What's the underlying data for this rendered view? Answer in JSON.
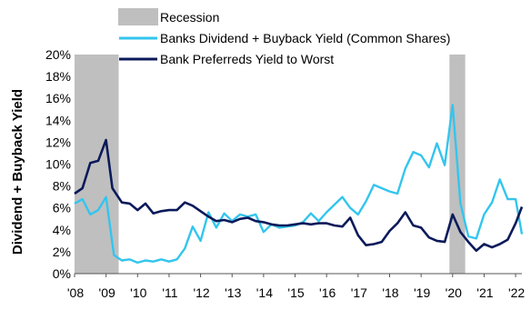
{
  "chart_data": {
    "type": "line",
    "ylabel": "Dividend + Buyback Yield",
    "ylim": [
      0,
      20
    ],
    "yticks": [
      "0%",
      "2%",
      "4%",
      "6%",
      "8%",
      "10%",
      "12%",
      "14%",
      "16%",
      "18%",
      "20%"
    ],
    "xlim": [
      2008,
      2022.2
    ],
    "xticks": [
      {
        "label": "'08",
        "year": 2008
      },
      {
        "label": "'09",
        "year": 2009
      },
      {
        "label": "'10",
        "year": 2010
      },
      {
        "label": "'11",
        "year": 2011
      },
      {
        "label": "'12",
        "year": 2012
      },
      {
        "label": "'13",
        "year": 2013
      },
      {
        "label": "'14",
        "year": 2014
      },
      {
        "label": "'15",
        "year": 2015
      },
      {
        "label": "'16",
        "year": 2016
      },
      {
        "label": "'17",
        "year": 2017
      },
      {
        "label": "'18",
        "year": 2018
      },
      {
        "label": "'19",
        "year": 2019
      },
      {
        "label": "'20",
        "year": 2020
      },
      {
        "label": "'21",
        "year": 2021
      },
      {
        "label": "'22",
        "year": 2022
      }
    ],
    "recessions": [
      {
        "start": 2008.0,
        "end": 2009.4
      },
      {
        "start": 2019.9,
        "end": 2020.4
      }
    ],
    "legend": {
      "placement": "top",
      "items": [
        {
          "label": "Recession",
          "kind": "box",
          "color": "#bfbfbf"
        },
        {
          "label": "Banks Dividend + Buyback Yield (Common Shares)",
          "kind": "line",
          "color": "#33c5ee"
        },
        {
          "label": "Bank Preferreds Yield to Worst",
          "kind": "line",
          "color": "#0b1a5a"
        }
      ]
    },
    "series": [
      {
        "name": "Banks Dividend + Buyback Yield (Common Shares)",
        "color": "#33c5ee",
        "points": [
          [
            2008.0,
            6.4
          ],
          [
            2008.25,
            6.8
          ],
          [
            2008.5,
            5.4
          ],
          [
            2008.75,
            5.8
          ],
          [
            2009.0,
            7.0
          ],
          [
            2009.25,
            1.7
          ],
          [
            2009.5,
            1.2
          ],
          [
            2009.75,
            1.3
          ],
          [
            2010.0,
            1.0
          ],
          [
            2010.25,
            1.2
          ],
          [
            2010.5,
            1.1
          ],
          [
            2010.75,
            1.3
          ],
          [
            2011.0,
            1.1
          ],
          [
            2011.25,
            1.3
          ],
          [
            2011.5,
            2.3
          ],
          [
            2011.75,
            4.3
          ],
          [
            2012.0,
            3.0
          ],
          [
            2012.25,
            5.6
          ],
          [
            2012.5,
            4.2
          ],
          [
            2012.75,
            5.5
          ],
          [
            2013.0,
            4.8
          ],
          [
            2013.25,
            5.4
          ],
          [
            2013.5,
            5.2
          ],
          [
            2013.75,
            5.4
          ],
          [
            2014.0,
            3.8
          ],
          [
            2014.25,
            4.5
          ],
          [
            2014.5,
            4.2
          ],
          [
            2014.75,
            4.3
          ],
          [
            2015.0,
            4.4
          ],
          [
            2015.25,
            4.7
          ],
          [
            2015.5,
            5.5
          ],
          [
            2015.75,
            4.8
          ],
          [
            2016.0,
            5.6
          ],
          [
            2016.25,
            6.3
          ],
          [
            2016.5,
            7.0
          ],
          [
            2016.75,
            6.0
          ],
          [
            2017.0,
            5.4
          ],
          [
            2017.25,
            6.6
          ],
          [
            2017.5,
            8.1
          ],
          [
            2017.75,
            7.8
          ],
          [
            2018.0,
            7.5
          ],
          [
            2018.25,
            7.3
          ],
          [
            2018.5,
            9.6
          ],
          [
            2018.75,
            11.1
          ],
          [
            2019.0,
            10.8
          ],
          [
            2019.25,
            9.7
          ],
          [
            2019.5,
            11.9
          ],
          [
            2019.75,
            9.9
          ],
          [
            2020.0,
            15.4
          ],
          [
            2020.25,
            6.4
          ],
          [
            2020.5,
            3.4
          ],
          [
            2020.75,
            3.2
          ],
          [
            2021.0,
            5.4
          ],
          [
            2021.25,
            6.5
          ],
          [
            2021.5,
            8.6
          ],
          [
            2021.75,
            6.8
          ],
          [
            2022.0,
            6.8
          ],
          [
            2022.2,
            3.6
          ]
        ]
      },
      {
        "name": "Bank Preferreds Yield to Worst",
        "color": "#0b1a5a",
        "points": [
          [
            2008.0,
            7.3
          ],
          [
            2008.25,
            7.8
          ],
          [
            2008.5,
            10.1
          ],
          [
            2008.75,
            10.3
          ],
          [
            2009.0,
            12.2
          ],
          [
            2009.2,
            7.8
          ],
          [
            2009.5,
            6.5
          ],
          [
            2009.75,
            6.4
          ],
          [
            2010.0,
            5.8
          ],
          [
            2010.25,
            6.4
          ],
          [
            2010.5,
            5.5
          ],
          [
            2010.75,
            5.7
          ],
          [
            2011.0,
            5.8
          ],
          [
            2011.25,
            5.8
          ],
          [
            2011.5,
            6.5
          ],
          [
            2011.75,
            6.2
          ],
          [
            2012.0,
            5.7
          ],
          [
            2012.25,
            5.2
          ],
          [
            2012.5,
            4.8
          ],
          [
            2012.75,
            4.9
          ],
          [
            2013.0,
            4.7
          ],
          [
            2013.25,
            5.0
          ],
          [
            2013.5,
            5.1
          ],
          [
            2013.75,
            4.8
          ],
          [
            2014.0,
            4.7
          ],
          [
            2014.25,
            4.5
          ],
          [
            2014.5,
            4.4
          ],
          [
            2014.75,
            4.4
          ],
          [
            2015.0,
            4.5
          ],
          [
            2015.25,
            4.6
          ],
          [
            2015.5,
            4.5
          ],
          [
            2015.75,
            4.6
          ],
          [
            2016.0,
            4.6
          ],
          [
            2016.25,
            4.4
          ],
          [
            2016.5,
            4.3
          ],
          [
            2016.75,
            5.1
          ],
          [
            2017.0,
            3.5
          ],
          [
            2017.25,
            2.6
          ],
          [
            2017.5,
            2.7
          ],
          [
            2017.75,
            2.9
          ],
          [
            2018.0,
            3.9
          ],
          [
            2018.25,
            4.6
          ],
          [
            2018.5,
            5.6
          ],
          [
            2018.75,
            4.4
          ],
          [
            2019.0,
            4.2
          ],
          [
            2019.25,
            3.3
          ],
          [
            2019.5,
            3.0
          ],
          [
            2019.75,
            2.9
          ],
          [
            2020.0,
            5.4
          ],
          [
            2020.25,
            3.8
          ],
          [
            2020.5,
            2.9
          ],
          [
            2020.75,
            2.1
          ],
          [
            2021.0,
            2.7
          ],
          [
            2021.25,
            2.4
          ],
          [
            2021.5,
            2.7
          ],
          [
            2021.75,
            3.1
          ],
          [
            2022.0,
            4.6
          ],
          [
            2022.2,
            6.1
          ]
        ]
      }
    ]
  }
}
